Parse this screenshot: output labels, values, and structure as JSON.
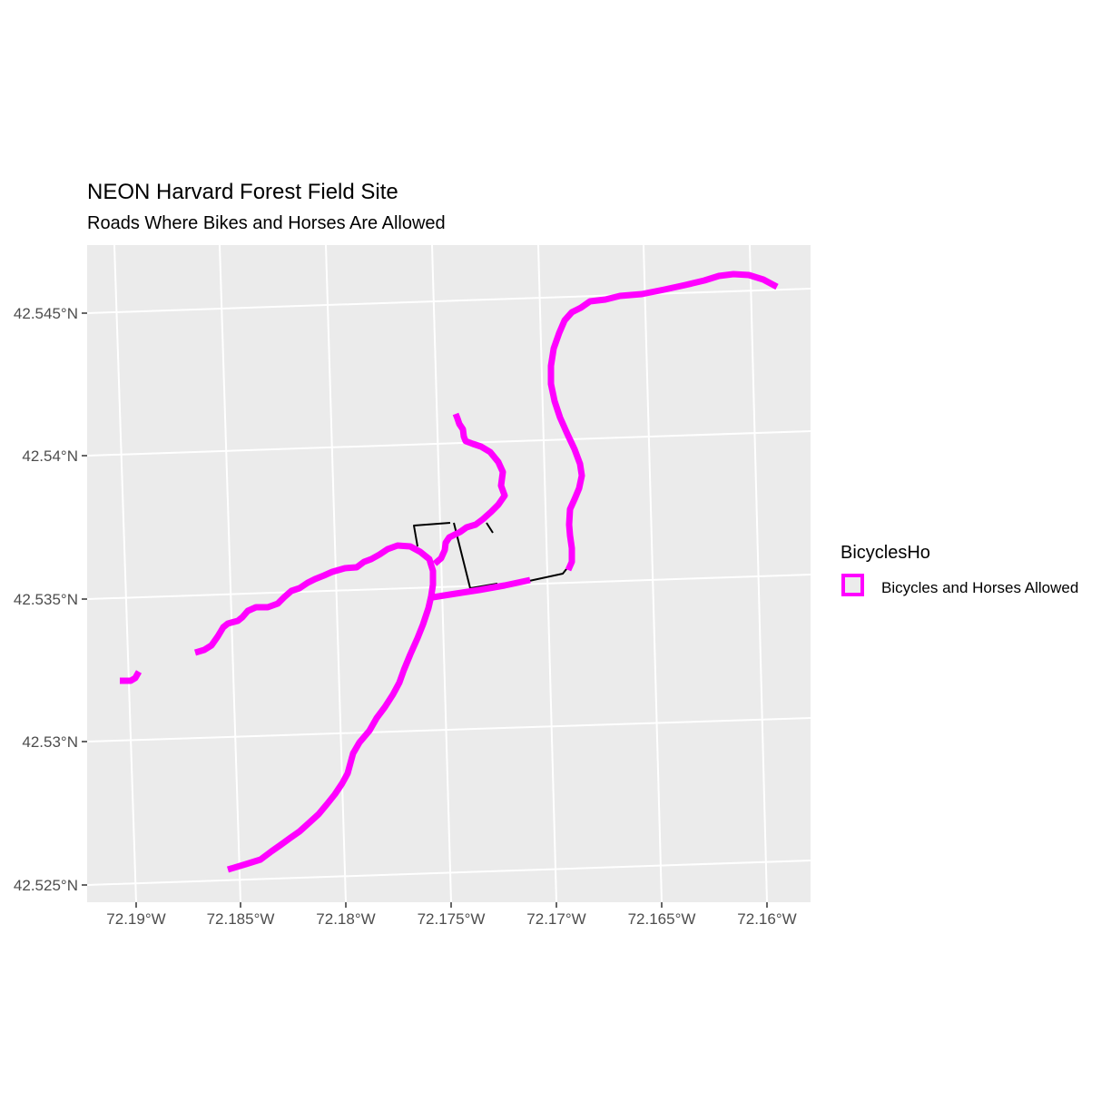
{
  "title": "NEON Harvard Forest Field Site",
  "subtitle": "Roads Where Bikes and Horses Are Allowed",
  "legend": {
    "title": "BicyclesHo",
    "items": [
      {
        "label": "Bicycles and Horses Allowed",
        "color": "#ff00ff"
      }
    ]
  },
  "map": {
    "panel_background": "#ebebeb",
    "grid_color": "#ffffff",
    "lon_ticks": [
      {
        "value": -72.19,
        "label": "72.19°W"
      },
      {
        "value": -72.185,
        "label": "72.185°W"
      },
      {
        "value": -72.18,
        "label": "72.18°W"
      },
      {
        "value": -72.175,
        "label": "72.175°W"
      },
      {
        "value": -72.17,
        "label": "72.17°W"
      },
      {
        "value": -72.165,
        "label": "72.165°W"
      },
      {
        "value": -72.16,
        "label": "72.16°W"
      }
    ],
    "lat_ticks": [
      {
        "value": 42.545,
        "label": "42.545°N"
      },
      {
        "value": 42.54,
        "label": "42.54°N"
      },
      {
        "value": 42.535,
        "label": "42.535°N"
      },
      {
        "value": 42.53,
        "label": "42.53°N"
      },
      {
        "value": 42.525,
        "label": "42.525°N"
      }
    ],
    "highlight_color": "#ff00ff",
    "other_color": "#000000"
  }
}
